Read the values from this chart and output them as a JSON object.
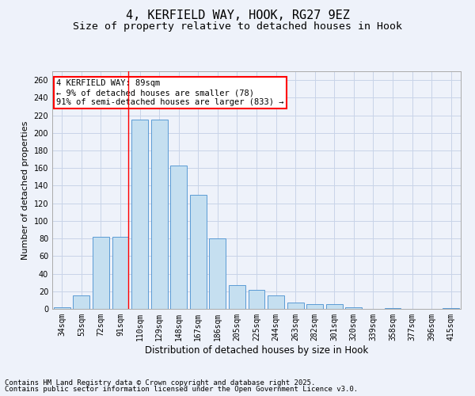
{
  "title1": "4, KERFIELD WAY, HOOK, RG27 9EZ",
  "title2": "Size of property relative to detached houses in Hook",
  "xlabel": "Distribution of detached houses by size in Hook",
  "ylabel": "Number of detached properties",
  "categories": [
    "34sqm",
    "53sqm",
    "72sqm",
    "91sqm",
    "110sqm",
    "129sqm",
    "148sqm",
    "167sqm",
    "186sqm",
    "205sqm",
    "225sqm",
    "244sqm",
    "263sqm",
    "282sqm",
    "301sqm",
    "320sqm",
    "339sqm",
    "358sqm",
    "377sqm",
    "396sqm",
    "415sqm"
  ],
  "values": [
    2,
    15,
    82,
    82,
    215,
    215,
    163,
    130,
    80,
    27,
    22,
    15,
    7,
    5,
    5,
    2,
    0,
    1,
    0,
    0,
    1
  ],
  "bar_color": "#c5dff0",
  "bar_edge_color": "#5b9bd5",
  "background_color": "#eef2fa",
  "grid_color": "#c8d4e8",
  "red_line_index": 3,
  "annotation_title": "4 KERFIELD WAY: 89sqm",
  "annotation_line1": "← 9% of detached houses are smaller (78)",
  "annotation_line2": "91% of semi-detached houses are larger (833) →",
  "ylim": [
    0,
    270
  ],
  "yticks": [
    0,
    20,
    40,
    60,
    80,
    100,
    120,
    140,
    160,
    180,
    200,
    220,
    240,
    260
  ],
  "footnote1": "Contains HM Land Registry data © Crown copyright and database right 2025.",
  "footnote2": "Contains public sector information licensed under the Open Government Licence v3.0.",
  "title_fontsize": 11,
  "subtitle_fontsize": 9.5,
  "xlabel_fontsize": 8.5,
  "ylabel_fontsize": 8,
  "tick_fontsize": 7,
  "annot_fontsize": 7.5,
  "footnote_fontsize": 6.5
}
